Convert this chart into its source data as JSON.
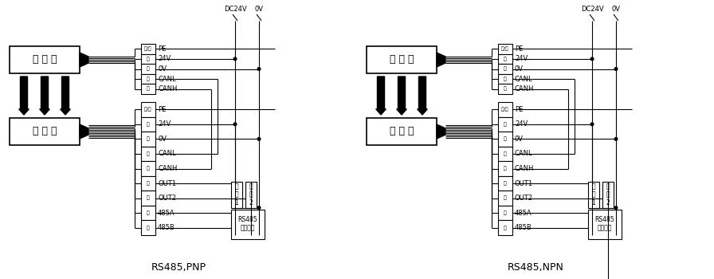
{
  "bg_color": "#ffffff",
  "line_color": "#000000",
  "npn_label_color": "#000000",
  "pnp_label": "RS485,PNP",
  "npn_label": "RS485,NPN",
  "transmitter_label": "发 射 器",
  "receiver_label": "接 收 器",
  "dc24v_label": "DC24V",
  "ov_label": "0V",
  "rs485_label": "RS485\n设备终端",
  "fuzai1_label": "负\n载\n1",
  "fuzai2_label": "负\n载\n2",
  "tx_wire_labels": [
    "黄/绿",
    "红",
    "绿",
    "蓝",
    "黄"
  ],
  "rx_wire_labels": [
    "黄/绿",
    "红",
    "绿",
    "蓝",
    "黄",
    "黑",
    "棕",
    "白",
    "橙"
  ],
  "rx_signal_labels": [
    "PE",
    "24V",
    "0V",
    "CANL",
    "CANH",
    "OUT1",
    "OUT2",
    "485A",
    "485B"
  ],
  "tx_signal_labels": [
    "PE",
    "24V",
    "0V",
    "CANL",
    "CANH"
  ]
}
